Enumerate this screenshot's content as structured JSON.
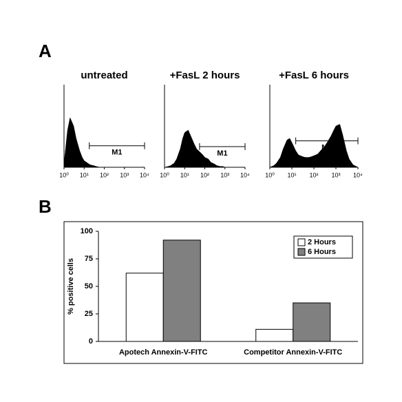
{
  "panel_labels": [
    "A",
    "B"
  ],
  "chart_data": [
    {
      "type": "histogram-area",
      "title": "untreated",
      "log_x": true,
      "color": "#000000",
      "x": [
        1,
        1.5,
        2,
        3,
        4,
        6,
        8,
        10,
        15,
        20,
        30,
        40,
        60,
        80,
        100,
        150,
        200,
        300,
        400,
        600,
        800,
        1000,
        1500,
        2000,
        3000,
        4000,
        6000,
        10000
      ],
      "values": [
        5,
        45,
        60,
        50,
        35,
        20,
        12,
        8,
        5,
        3,
        2,
        1,
        0,
        0,
        0,
        0,
        0,
        0,
        0,
        0,
        0,
        0,
        0,
        0,
        0,
        0,
        0,
        0
      ],
      "xlim": [
        1,
        10000
      ],
      "ylim": [
        0,
        100
      ],
      "xticks": [
        {
          "value": 1,
          "label": "10⁰"
        },
        {
          "value": 10,
          "label": "10¹"
        },
        {
          "value": 100,
          "label": "10²"
        },
        {
          "value": 1000,
          "label": "10³"
        },
        {
          "value": 10000,
          "label": "10⁴"
        }
      ],
      "annotations": [
        {
          "text": "M1",
          "x": [
            18,
            10000
          ],
          "y": 26
        }
      ]
    },
    {
      "type": "histogram-area",
      "title": "+FasL 2 hours",
      "log_x": true,
      "color": "#000000",
      "x": [
        1,
        1.5,
        2,
        3,
        4,
        6,
        8,
        10,
        15,
        20,
        30,
        40,
        60,
        80,
        100,
        150,
        200,
        300,
        400,
        600,
        800,
        1000,
        1500,
        2000,
        3000,
        4000,
        6000,
        10000
      ],
      "values": [
        0,
        1,
        2,
        5,
        10,
        22,
        35,
        42,
        45,
        38,
        28,
        22,
        18,
        15,
        12,
        10,
        6,
        4,
        2,
        1,
        1,
        0,
        0,
        0,
        0,
        0,
        0,
        0
      ],
      "xlim": [
        1,
        10000
      ],
      "ylim": [
        0,
        100
      ],
      "xticks": [
        {
          "value": 1,
          "label": "10⁰"
        },
        {
          "value": 10,
          "label": "10¹"
        },
        {
          "value": 100,
          "label": "10²"
        },
        {
          "value": 1000,
          "label": "10³"
        },
        {
          "value": 10000,
          "label": "10⁴"
        }
      ],
      "annotations": [
        {
          "text": "M1",
          "x": [
            55,
            10000
          ],
          "y": 25
        }
      ]
    },
    {
      "type": "histogram-area",
      "title": "+FasL 6 hours",
      "log_x": true,
      "color": "#000000",
      "x": [
        1,
        1.5,
        2,
        3,
        4,
        6,
        8,
        10,
        15,
        20,
        30,
        40,
        60,
        80,
        100,
        150,
        200,
        300,
        400,
        600,
        800,
        1000,
        1500,
        2000,
        3000,
        4000,
        6000,
        10000
      ],
      "values": [
        0,
        2,
        5,
        12,
        22,
        33,
        35,
        30,
        20,
        15,
        13,
        12,
        12,
        13,
        14,
        16,
        20,
        25,
        30,
        38,
        45,
        50,
        52,
        40,
        20,
        10,
        3,
        0
      ],
      "xlim": [
        1,
        10000
      ],
      "ylim": [
        0,
        100
      ],
      "xticks": [
        {
          "value": 1,
          "label": "10⁰"
        },
        {
          "value": 10,
          "label": "10¹"
        },
        {
          "value": 100,
          "label": "10²"
        },
        {
          "value": 1000,
          "label": "10³"
        },
        {
          "value": 10000,
          "label": "10⁴"
        }
      ],
      "annotations": [
        {
          "text": "M1",
          "x": [
            15,
            10000
          ],
          "y": 32
        }
      ]
    },
    {
      "type": "bar",
      "y_label": "% positive cells",
      "categories": [
        "Apotech Annexin-V-FITC",
        "Competitor Annexin-V-FITC"
      ],
      "series": [
        {
          "name": "2 Hours",
          "color": "#ffffff",
          "values": [
            62,
            11
          ]
        },
        {
          "name": "6 Hours",
          "color": "#808080",
          "values": [
            92,
            35
          ]
        }
      ],
      "ylim": [
        0,
        100
      ],
      "yticks": [
        0,
        25,
        50,
        75,
        100
      ],
      "legend": "upper right"
    }
  ]
}
